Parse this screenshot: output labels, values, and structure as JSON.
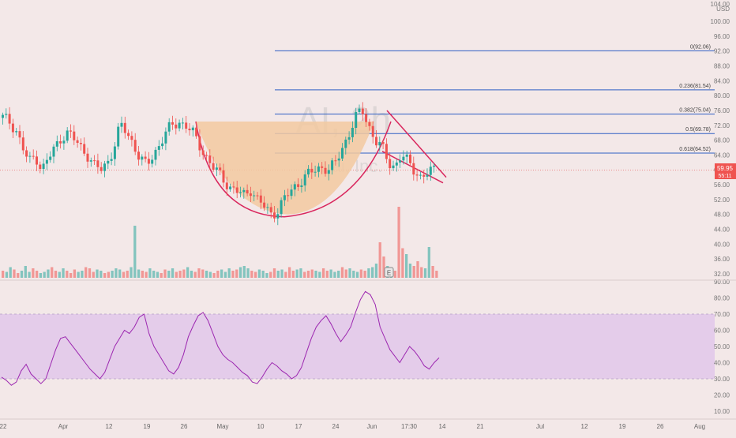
{
  "header": {
    "top_price_label": "104.00",
    "currency": "USD"
  },
  "watermark": {
    "symbol": "AI, 2h",
    "company": "C3.ai, Inc."
  },
  "colors": {
    "bg": "#f3e8e8",
    "up": "#26a69a",
    "down": "#ef5350",
    "fib": "#2f5fc4",
    "pattern": "#d9265d",
    "cup_fill": "#f2c9a0",
    "rsi_band": "#e0c7ea",
    "rsi_line": "#9c27b0",
    "price_line": "#ec8a8a",
    "badge_bg": "#ef5350"
  },
  "earnings_icon": {
    "letter": "E"
  },
  "price_badge": {
    "price": "59.95",
    "countdown": "55:11"
  },
  "chart_data": [
    {
      "type": "candlestick",
      "ylim": [
        30,
        104
      ],
      "yticks": [
        "100.00",
        "96.00",
        "92.00",
        "88.00",
        "84.00",
        "80.00",
        "76.00",
        "72.00",
        "68.00",
        "64.00",
        "60.00",
        "56.00",
        "52.00",
        "48.00",
        "44.00",
        "40.00",
        "36.00",
        "32.00"
      ],
      "xticks": [
        "22",
        "Apr",
        "12",
        "19",
        "26",
        "May",
        "10",
        "17",
        "24",
        "Jun",
        "17:30",
        "14",
        "21",
        "Jul",
        "12",
        "19",
        "26",
        "Aug"
      ],
      "close_path": [
        74,
        73,
        71,
        66,
        62,
        64,
        60,
        63,
        66,
        69,
        70,
        68,
        66,
        64,
        61,
        60,
        62,
        66,
        72,
        70,
        67,
        63,
        61,
        64,
        67,
        70,
        72,
        73,
        72,
        70,
        67,
        64,
        61,
        59,
        57,
        55,
        54,
        53,
        55,
        52,
        50,
        48,
        49,
        52,
        54,
        56,
        58,
        59,
        60,
        61,
        60,
        62,
        66,
        70,
        74,
        76,
        72,
        68,
        66,
        62,
        61,
        64,
        62,
        60,
        58,
        59,
        60
      ],
      "cup_region": {
        "top": 73,
        "bottom": 48
      },
      "fibonacci": [
        {
          "level": "0",
          "value": 92.06,
          "label": "0(92.06)"
        },
        {
          "level": "0.236",
          "value": 81.54,
          "label": "0.236(81.54)"
        },
        {
          "level": "0.382",
          "value": 75.04,
          "label": "0.382(75.04)"
        },
        {
          "level": "0.5",
          "value": 69.78,
          "label": "0.5(69.78)"
        },
        {
          "level": "0.618",
          "value": 64.52,
          "label": "0.618(64.52)"
        }
      ],
      "last_price": 59.95
    },
    {
      "type": "bar",
      "name": "volume",
      "values": [
        6,
        5,
        9,
        7,
        4,
        6,
        10,
        5,
        8,
        6,
        4,
        5,
        7,
        9,
        6,
        5,
        8,
        6,
        4,
        7,
        5,
        6,
        9,
        8,
        5,
        7,
        6,
        4,
        5,
        6,
        8,
        7,
        5,
        6,
        9,
        44,
        7,
        6,
        5,
        8,
        6,
        5,
        4,
        7,
        6,
        8,
        5,
        6,
        7,
        9,
        6,
        5,
        8,
        7,
        6,
        5,
        4,
        6,
        7,
        5,
        8,
        6,
        7,
        9,
        10,
        8,
        6,
        5,
        7,
        6,
        4,
        5,
        8,
        6,
        7,
        5,
        9,
        6,
        7,
        8,
        5,
        6,
        7,
        6,
        5,
        8,
        6,
        7,
        5,
        6,
        9,
        7,
        8,
        6,
        5,
        7,
        6,
        8,
        9,
        12,
        30,
        18,
        10,
        8,
        6,
        60,
        25,
        20,
        12,
        10,
        14,
        9,
        8,
        26,
        10,
        6
      ]
    },
    {
      "type": "line",
      "name": "rsi",
      "ylim": [
        10,
        90
      ],
      "band": [
        30,
        70
      ],
      "yticks": [
        "90.00",
        "80.00",
        "70.00",
        "60.00",
        "50.00",
        "40.00",
        "30.00",
        "20.00",
        "10.00"
      ],
      "values": [
        31,
        29,
        26,
        28,
        35,
        39,
        33,
        30,
        27,
        30,
        39,
        48,
        55,
        56,
        52,
        48,
        44,
        40,
        36,
        33,
        30,
        34,
        42,
        50,
        55,
        60,
        58,
        62,
        68,
        70,
        58,
        50,
        45,
        40,
        35,
        33,
        37,
        45,
        56,
        63,
        69,
        71,
        66,
        58,
        50,
        45,
        42,
        40,
        37,
        34,
        32,
        28,
        27,
        31,
        36,
        40,
        38,
        35,
        33,
        30,
        32,
        37,
        46,
        55,
        62,
        66,
        69,
        64,
        58,
        53,
        57,
        62,
        71,
        79,
        84,
        82,
        76,
        62,
        55,
        48,
        44,
        40,
        45,
        50,
        47,
        43,
        38,
        36,
        40,
        43
      ]
    }
  ]
}
